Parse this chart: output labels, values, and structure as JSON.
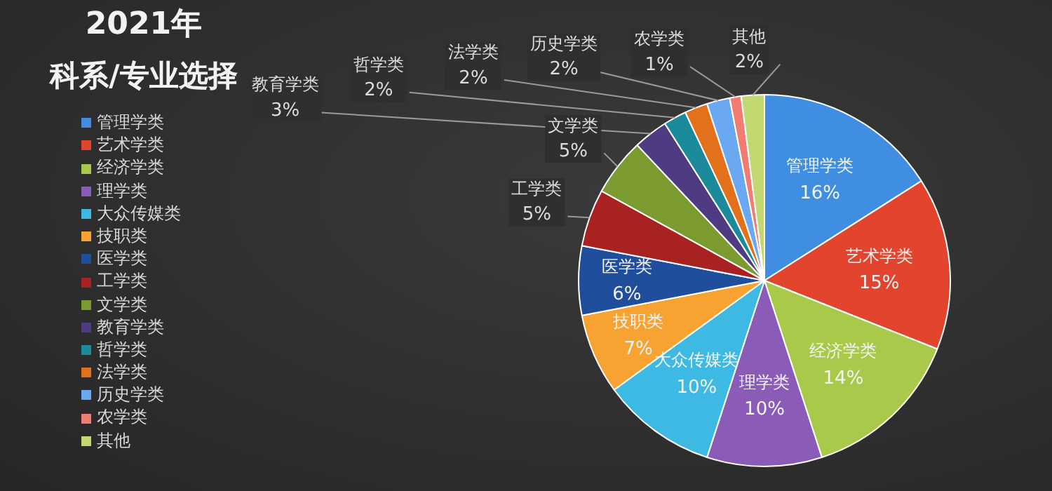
{
  "chart_data": {
    "type": "pie",
    "title": "2021年",
    "subtitle": "科系/专业选择",
    "categories": [
      "管理学类",
      "艺术学类",
      "经济学类",
      "理学类",
      "大众传媒类",
      "技职类",
      "医学类",
      "工学类",
      "文学类",
      "教育学类",
      "哲学类",
      "法学类",
      "历史学类",
      "农学类",
      "其他"
    ],
    "values": [
      16,
      15,
      14,
      10,
      10,
      7,
      6,
      5,
      5,
      3,
      2,
      2,
      2,
      1,
      2
    ],
    "colors": [
      "#3f8ee2",
      "#e2442e",
      "#a9c94a",
      "#8a5cb8",
      "#3db9e3",
      "#f8a232",
      "#1f4f9c",
      "#a82222",
      "#7b9b31",
      "#4f3b82",
      "#1b8b9b",
      "#e3711b",
      "#6aa9f2",
      "#f27c72",
      "#c2d971"
    ],
    "value_labels": [
      "16%",
      "15%",
      "14%",
      "10%",
      "10%",
      "7%",
      "6%",
      "5%",
      "5%",
      "3%",
      "2%",
      "2%",
      "2%",
      "1%",
      "2%"
    ],
    "legend": "left"
  }
}
